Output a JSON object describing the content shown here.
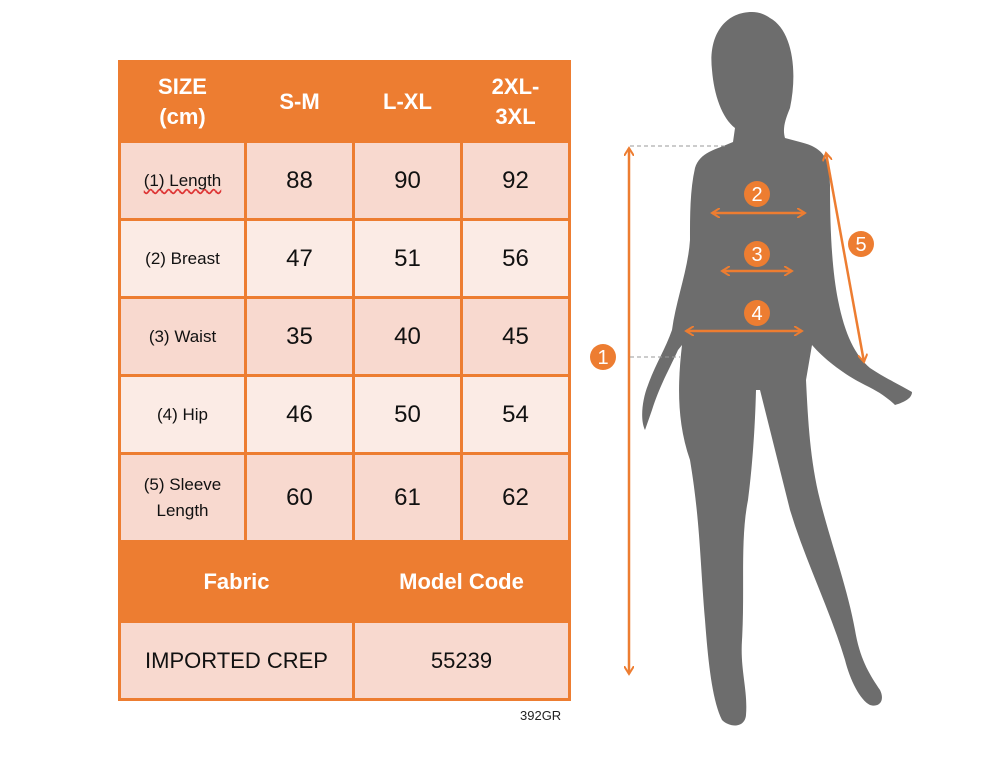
{
  "table": {
    "header": [
      "SIZE (cm)",
      "S-M",
      "L-XL",
      "2XL-3XL"
    ],
    "header_lines": [
      [
        "SIZE",
        "(cm)"
      ],
      [
        "S-M"
      ],
      [
        "L-XL"
      ],
      [
        "2XL-",
        "3XL"
      ]
    ],
    "rows": [
      {
        "label": "(1) Length",
        "values": [
          "88",
          "90",
          "92"
        ]
      },
      {
        "label": "(2) Breast",
        "values": [
          "47",
          "51",
          "56"
        ]
      },
      {
        "label": "(3) Waist",
        "values": [
          "35",
          "40",
          "45"
        ]
      },
      {
        "label": "(4) Hip",
        "values": [
          "46",
          "50",
          "54"
        ]
      },
      {
        "label": "(5) Sleeve Length",
        "values": [
          "60",
          "61",
          "62"
        ]
      }
    ],
    "footer_headers": [
      "Fabric",
      "Model Code"
    ],
    "footer_values": [
      "IMPORTED CREP",
      "55239"
    ]
  },
  "product_code": "392GR",
  "figure": {
    "markers": [
      "1",
      "2",
      "3",
      "4",
      "5"
    ]
  },
  "colors": {
    "accent": "#ed7d31",
    "row_dark": "#f8d9cf",
    "row_light": "#fbebe5",
    "silhouette": "#6d6d6d"
  }
}
